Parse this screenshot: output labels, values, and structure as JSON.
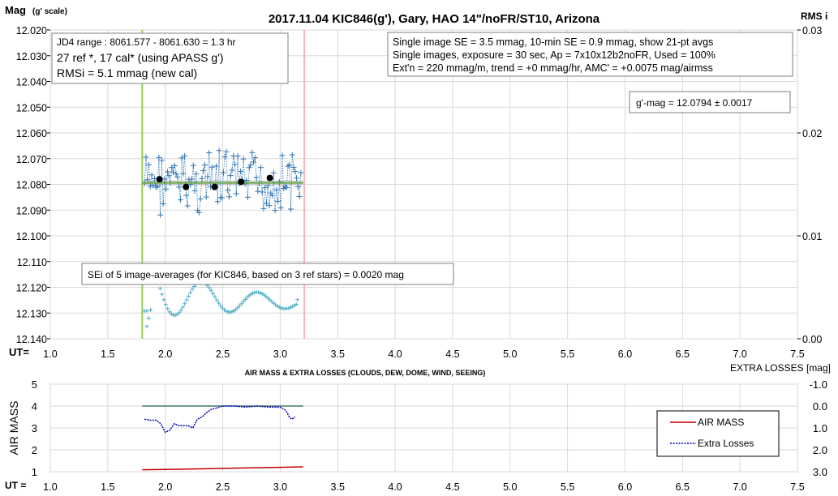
{
  "chart_data": [
    {
      "type": "scatter",
      "title": "2017.11.04  KIC846(g'),  Gary, HAO  14\"/noFR/ST10,  Arizona",
      "ylabel": "Mag",
      "ylabel_sub": "(g' scale)",
      "y2label": "RMS i",
      "xlabel": "UT=",
      "xlim": [
        1.0,
        7.5
      ],
      "ylim": [
        12.02,
        12.14
      ],
      "y_reversed": true,
      "y2lim": [
        0.0,
        0.03
      ],
      "x_ticks": [
        "1.0",
        "1.5",
        "2.0",
        "2.5",
        "3.0",
        "3.5",
        "4.0",
        "4.5",
        "5.0",
        "5.5",
        "6.0",
        "6.5",
        "7.0",
        "7.5"
      ],
      "y_ticks": [
        "12.020",
        "12.030",
        "12.040",
        "12.050",
        "12.060",
        "12.070",
        "12.080",
        "12.090",
        "12.100",
        "12.110",
        "12.120",
        "12.130",
        "12.140"
      ],
      "y2_ticks": [
        "0.03",
        "0.02",
        "0.01",
        "0.00"
      ],
      "grid": true,
      "vlines": [
        {
          "x": 1.8,
          "color": "#92d050"
        },
        {
          "x": 3.21,
          "color": "#f4b6bc"
        }
      ],
      "annotations": {
        "box1": [
          "JD4 range : 8061.577 - 8061.630 =  1.3  hr",
          "27 ref *, 17 cal* (using APASS g')",
          "RMSi = 5.1 mmag (new cal)"
        ],
        "box2": [
          "Single image SE = 3.5 mmag, 10-min SE = 0.9 mmag, show  21-pt avgs",
          "Single images, exposure = 30 sec, Ap = 7x10x12b2noFR,  Used = 100%",
          "Ext'n = 220 mmag/m, trend =  +0 mmag/hr, AMC' = +0.0075 mag/airmss"
        ],
        "mag_box": "g'-mag = 12.0794 ± 0.0017",
        "sei_box": "SEi of 5 image-averages (for KIC846, based on 3 ref stars) = 0.0020  mag"
      },
      "series": [
        {
          "x_range": [
            1.82,
            3.18
          ],
          "mean": 12.0794,
          "color": "#2e75b6"
        },
        {
          "x": [
            1.95,
            2.18,
            2.43,
            2.66,
            2.91
          ],
          "y": [
            12.078,
            12.081,
            12.081,
            12.079,
            12.0775
          ],
          "color": "#000000"
        },
        {
          "x": [
            1.8,
            3.2
          ],
          "y": [
            12.0794,
            12.0794
          ],
          "color": "#70ad47"
        },
        {
          "x_range": [
            1.84,
            3.14
          ],
          "axis": "right",
          "color": "#4bacc6"
        }
      ]
    },
    {
      "type": "line",
      "title": "AIR MASS & EXTRA LOSSES (CLOUDS, DEW, DOME, WIND, SEEING)",
      "ylabel": "AIR MASS",
      "y2label": "EXTRA LOSSES [mag]",
      "xlabel": "UT =",
      "xlim": [
        1.0,
        7.5
      ],
      "ylim": [
        1,
        5
      ],
      "y2lim": [
        -1.0,
        3.0
      ],
      "x_ticks": [
        "1.0",
        "1.5",
        "2.0",
        "2.5",
        "3.0",
        "3.5",
        "4.0",
        "4.5",
        "5.0",
        "5.5",
        "6.0",
        "6.5",
        "7.0",
        "7.5"
      ],
      "y_ticks": [
        "5",
        "4",
        "3",
        "2",
        "1"
      ],
      "y2_ticks": [
        "-1.0",
        "0.0",
        "1.0",
        "2.0",
        "3.0"
      ],
      "grid": true,
      "legend_position": "right",
      "series": [
        {
          "name": "AIR MASS",
          "color": "#c00000",
          "x": [
            1.8,
            2.0,
            2.2,
            2.4,
            2.6,
            2.8,
            3.0,
            3.2
          ],
          "y": [
            1.09,
            1.1,
            1.12,
            1.14,
            1.16,
            1.18,
            1.2,
            1.22
          ]
        },
        {
          "name": "Extra Losses",
          "color": "#0000c0",
          "axis": "right",
          "x": [
            1.82,
            1.87,
            1.92,
            1.96,
            2.0,
            2.04,
            2.08,
            2.12,
            2.16,
            2.2,
            2.24,
            2.28,
            2.32,
            2.36,
            2.4,
            2.44,
            2.5,
            2.6,
            2.7,
            2.8,
            2.9,
            3.0,
            3.05,
            3.08,
            3.1,
            3.13
          ],
          "y": [
            0.6,
            0.65,
            0.65,
            0.8,
            1.2,
            1.1,
            0.8,
            0.9,
            0.9,
            0.9,
            1.0,
            0.6,
            0.5,
            0.3,
            0.15,
            0.1,
            0.0,
            0.0,
            0.05,
            0.0,
            0.05,
            0.05,
            0.2,
            0.5,
            0.6,
            0.5
          ]
        },
        {
          "name": "",
          "color": "#1f5c4c",
          "axis": "right",
          "x": [
            1.8,
            3.2
          ],
          "y": [
            0.0,
            0.0
          ]
        }
      ]
    }
  ]
}
